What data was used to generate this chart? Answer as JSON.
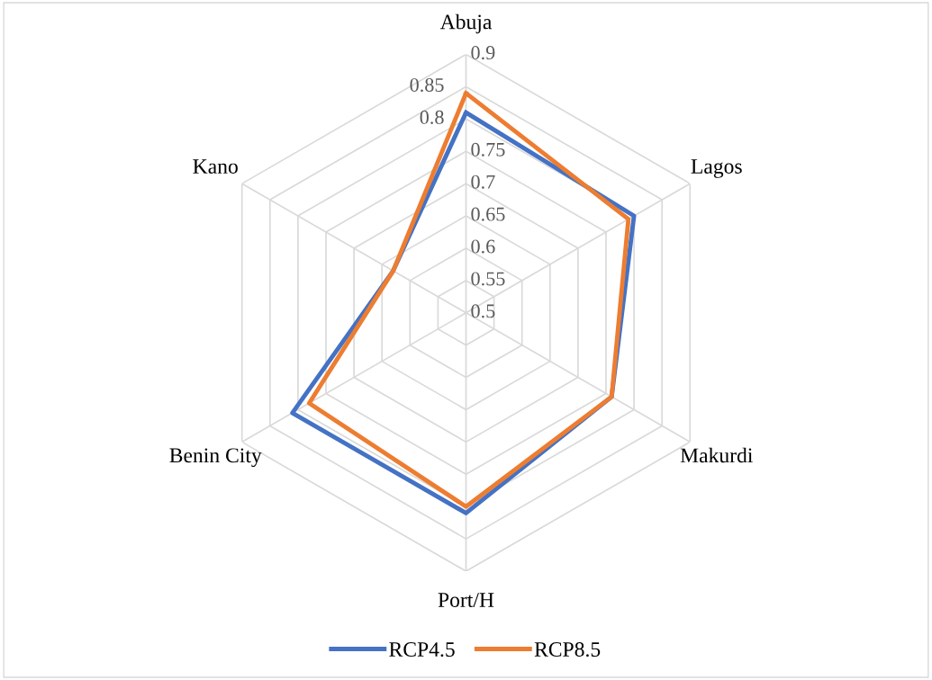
{
  "chart_data": {
    "type": "radar",
    "categories": [
      "Abuja",
      "Lagos",
      "Makurdi",
      "Port/H",
      "Benin City",
      "Kano"
    ],
    "series": [
      {
        "name": "RCP4.5",
        "color": "#4472c4",
        "values": [
          0.81,
          0.8,
          0.76,
          0.81,
          0.81,
          0.63
        ]
      },
      {
        "name": "RCP8.5",
        "color": "#ed7d31",
        "values": [
          0.84,
          0.79,
          0.76,
          0.8,
          0.78,
          0.63
        ]
      }
    ],
    "ylim": [
      0.5,
      0.9
    ],
    "yticks": [
      0.5,
      0.55,
      0.6,
      0.65,
      0.7,
      0.75,
      0.8,
      0.85,
      0.9
    ],
    "grid": true,
    "legend": "bottom",
    "marker": "none",
    "line_style": "solid"
  }
}
